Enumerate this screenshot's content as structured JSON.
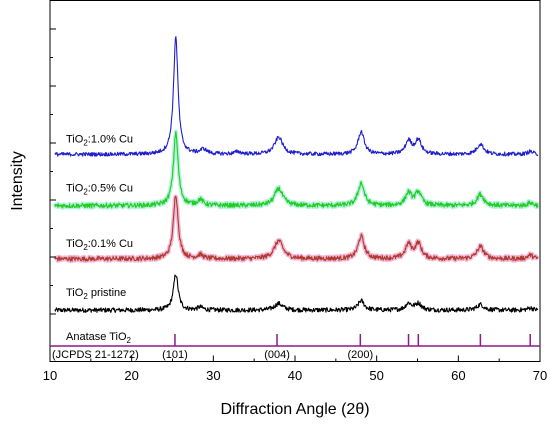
{
  "chart_data": {
    "type": "line",
    "xlabel": "Diffraction Angle (2θ)",
    "ylabel": "Intensity",
    "xlim": [
      10,
      70
    ],
    "x_ticks": [
      "10",
      "20",
      "30",
      "40",
      "50",
      "60",
      "70"
    ],
    "y_tick_labels_shown": false,
    "grid": false,
    "legend": "none (series labels placed above each curve)",
    "series": [
      {
        "name": "TiO2 pristine",
        "name_parts": {
          "pre": "TiO",
          "sub": "2",
          "post": " pristine"
        },
        "color": "#000000",
        "baseline": 0.0,
        "noise": 0.012,
        "peaks": [
          [
            25.4,
            0.19,
            0.35
          ],
          [
            28.4,
            0.015,
            0.4
          ],
          [
            38.0,
            0.035,
            0.6
          ],
          [
            48.1,
            0.05,
            0.45
          ],
          [
            53.9,
            0.035,
            0.45
          ],
          [
            55.1,
            0.035,
            0.45
          ],
          [
            62.7,
            0.03,
            0.5
          ],
          [
            68.8,
            0.012,
            0.4
          ]
        ]
      },
      {
        "name": "TiO2:0.1% Cu",
        "name_parts": {
          "pre": "TiO",
          "sub": "2",
          "post": ":0.1% Cu"
        },
        "color": "#b03a2e",
        "highlight": "#f2b8d8",
        "baseline": 0.27,
        "noise": 0.012,
        "peaks": [
          [
            25.4,
            0.34,
            0.35
          ],
          [
            28.4,
            0.02,
            0.4
          ],
          [
            38.0,
            0.095,
            0.65
          ],
          [
            48.1,
            0.12,
            0.45
          ],
          [
            53.9,
            0.075,
            0.45
          ],
          [
            55.1,
            0.08,
            0.45
          ],
          [
            62.7,
            0.065,
            0.5
          ],
          [
            68.8,
            0.02,
            0.4
          ]
        ]
      },
      {
        "name": "TiO2:0.5% Cu",
        "name_parts": {
          "pre": "TiO",
          "sub": "2",
          "post": ":0.5% Cu"
        },
        "color": "#22cc22",
        "highlight": "#b6f2dc",
        "baseline": 0.55,
        "noise": 0.012,
        "peaks": [
          [
            25.4,
            0.38,
            0.35
          ],
          [
            28.4,
            0.03,
            0.4
          ],
          [
            38.0,
            0.09,
            0.6
          ],
          [
            48.1,
            0.12,
            0.45
          ],
          [
            53.9,
            0.065,
            0.45
          ],
          [
            55.1,
            0.07,
            0.45
          ],
          [
            62.7,
            0.06,
            0.5
          ],
          [
            68.8,
            0.015,
            0.4
          ]
        ]
      },
      {
        "name": "TiO2:1.0% Cu",
        "name_parts": {
          "pre": "TiO",
          "sub": "2",
          "post": ":1.0% Cu"
        },
        "color": "#1f1fcc",
        "baseline": 0.82,
        "noise": 0.01,
        "peaks": [
          [
            25.4,
            0.62,
            0.33
          ],
          [
            28.8,
            0.025,
            0.5
          ],
          [
            33.0,
            0.012,
            0.5
          ],
          [
            38.0,
            0.09,
            0.6
          ],
          [
            48.1,
            0.12,
            0.45
          ],
          [
            53.9,
            0.07,
            0.45
          ],
          [
            55.1,
            0.075,
            0.45
          ],
          [
            62.7,
            0.055,
            0.5
          ],
          [
            68.8,
            0.015,
            0.4
          ]
        ]
      }
    ],
    "reference": {
      "title_parts": {
        "pre": "Anatase TiO",
        "sub": "2",
        "post": ""
      },
      "card": "(JCPDS 21-1272)",
      "color": "#8b1a8b",
      "lines": [
        25.3,
        37.8,
        48.0,
        53.9,
        55.1,
        62.7,
        68.8
      ],
      "hkl": [
        {
          "x": 25.3,
          "label": "(101)"
        },
        {
          "x": 37.8,
          "label": "(004)"
        },
        {
          "x": 48.0,
          "label": "(200)"
        }
      ]
    },
    "y_range": [
      -0.27,
      1.63
    ]
  }
}
